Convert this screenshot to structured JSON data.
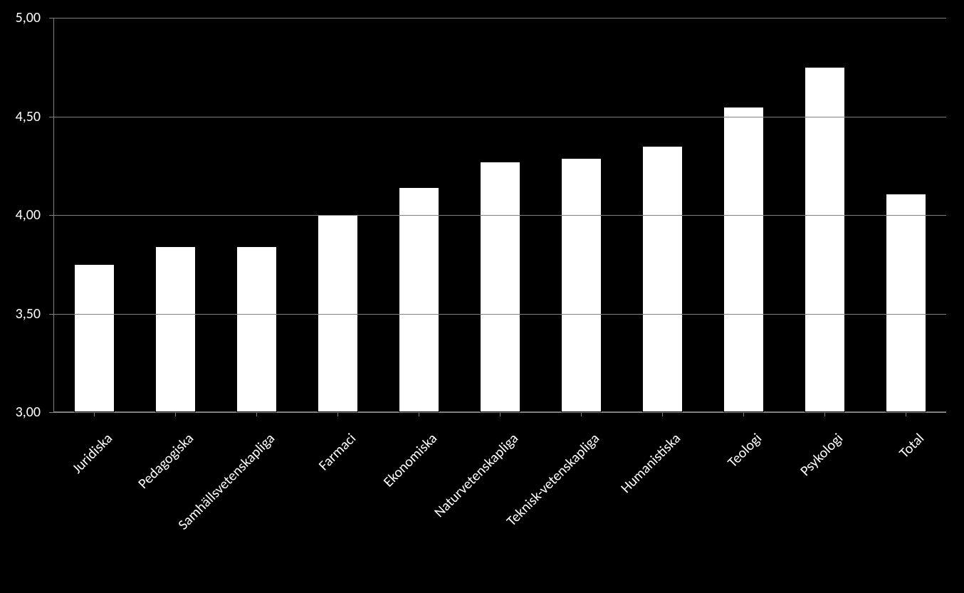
{
  "chart": {
    "type": "bar",
    "background_color": "#000000",
    "bar_fill_color": "#ffffff",
    "bar_border_color": "#000000",
    "grid_color": "#808080",
    "axis_color": "#808080",
    "label_color": "#ffffff",
    "label_fontsize": 20,
    "y_axis": {
      "min": 3.0,
      "max": 5.0,
      "tick_step": 0.5,
      "ticks": [
        {
          "value": 3.0,
          "label": "3,00"
        },
        {
          "value": 3.5,
          "label": "3,50"
        },
        {
          "value": 4.0,
          "label": "4,00"
        },
        {
          "value": 4.5,
          "label": "4,50"
        },
        {
          "value": 5.0,
          "label": "5,00"
        }
      ]
    },
    "bar_width_ratio": 0.5,
    "x_label_rotation_deg": -45,
    "categories": [
      "Juridiska",
      "Pedagogiska",
      "Samhällsvetenskapliga",
      "Farmaci",
      "Ekonomiska",
      "Naturvetenskapliga",
      "Teknisk-vetenskapliga",
      "Humanistiska",
      "Teologi",
      "Psykologi",
      "Total"
    ],
    "values": [
      3.75,
      3.84,
      3.84,
      4.0,
      4.14,
      4.27,
      4.29,
      4.35,
      4.55,
      4.75,
      4.11
    ]
  }
}
